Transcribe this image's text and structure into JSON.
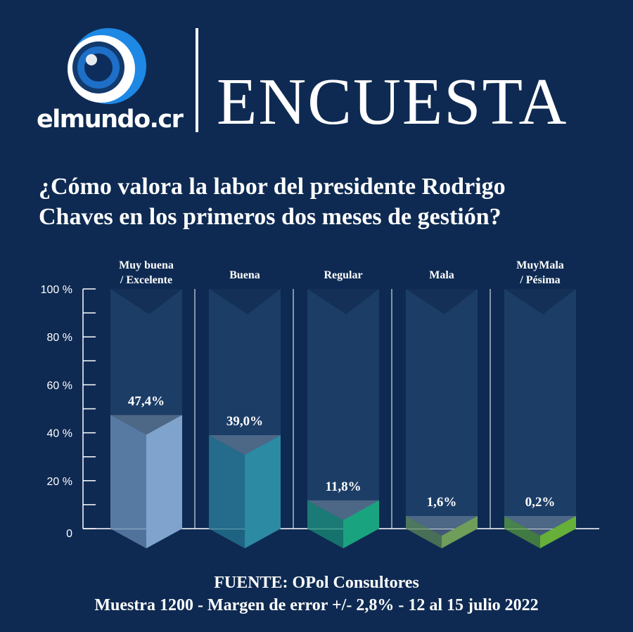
{
  "brand": {
    "name": "elmundo.cr",
    "headline": "ENCUESTA"
  },
  "question": {
    "line1": "¿Cómo valora la labor del presidente Rodrigo",
    "line2": "Chaves en los primeros dos meses de gestión?"
  },
  "colors": {
    "background": "#0e2a52",
    "track": "#1c3d66",
    "bars": [
      "#7fa3cc",
      "#2c8aa3",
      "#1aa37f",
      "#6f9e5a",
      "#66b03a"
    ]
  },
  "chart_data": {
    "type": "bar",
    "title": "¿Cómo valora la labor del presidente Rodrigo Chaves en los primeros dos meses de gestión?",
    "categories": [
      [
        "Muy buena",
        "/ Excelente"
      ],
      [
        "Buena"
      ],
      [
        "Regular"
      ],
      [
        "Mala"
      ],
      [
        "MuyMala",
        "/ Pésima"
      ]
    ],
    "values": [
      47.4,
      39.0,
      11.8,
      1.6,
      0.2
    ],
    "value_labels": [
      "47,4%",
      "39,0%",
      "11,8%",
      "1,6%",
      "0,2%"
    ],
    "ylim": [
      0,
      100
    ],
    "yticks": [
      0,
      20,
      40,
      60,
      80,
      100
    ],
    "ytick_labels": [
      "0",
      "20 %",
      "40 %",
      "60 %",
      "80 %",
      "100 %"
    ],
    "xlabel": "",
    "ylabel": ""
  },
  "footer": {
    "source": "FUENTE: OPol Consultores",
    "details": "Muestra 1200 - Margen de error +/- 2,8% - 12 al 15 julio 2022"
  }
}
